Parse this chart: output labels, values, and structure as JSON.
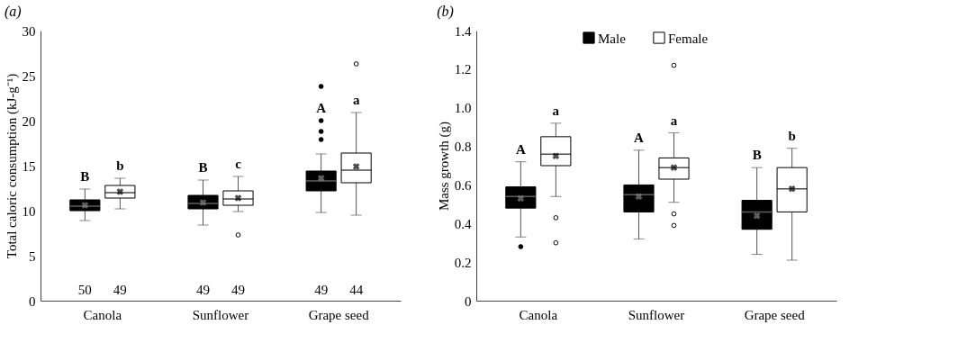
{
  "chart_data": [
    {
      "type": "box",
      "title": "(a)",
      "ylabel": "Total caloric consumption (kJ-g⁻¹)",
      "categories": [
        "Canola",
        "Sunflower",
        "Grape seed"
      ],
      "ylim": [
        0,
        30
      ],
      "yticks": [
        0,
        5,
        10,
        15,
        20,
        25,
        30
      ],
      "grid": false,
      "legend": false,
      "series": [
        {
          "color": "#000000",
          "boxes": [
            {
              "low": 8.9,
              "q1": 10.0,
              "median": 10.5,
              "q3": 11.2,
              "high": 12.4,
              "mean": 10.6
            },
            {
              "low": 8.4,
              "q1": 10.2,
              "median": 10.8,
              "q3": 11.7,
              "high": 13.4,
              "mean": 10.9
            },
            {
              "low": 9.8,
              "q1": 12.2,
              "median": 13.3,
              "q3": 14.4,
              "high": 16.3,
              "mean": 13.6,
              "outliers": [
                17.9,
                18.8,
                20.0,
                23.8
              ]
            }
          ]
        },
        {
          "color": "#ffffff",
          "boxes": [
            {
              "low": 10.2,
              "q1": 11.4,
              "median": 12.0,
              "q3": 12.8,
              "high": 13.6,
              "mean": 12.1
            },
            {
              "low": 9.9,
              "q1": 10.6,
              "median": 11.3,
              "q3": 12.2,
              "high": 13.8,
              "mean": 11.4,
              "outliers": [
                7.3
              ]
            },
            {
              "low": 9.5,
              "q1": 13.1,
              "median": 14.5,
              "q3": 16.4,
              "high": 20.9,
              "mean": 14.9,
              "outliers": [
                26.3
              ]
            }
          ]
        }
      ],
      "annotations": [
        "B",
        "b",
        "B",
        "c",
        "A",
        "a",
        "50",
        "49",
        "49",
        "49",
        "49",
        "44"
      ]
    },
    {
      "type": "box",
      "title": "(b)",
      "ylabel": "Mass growth (g)",
      "categories": [
        "Canola",
        "Sunflower",
        "Grape seed"
      ],
      "ylim": [
        0,
        1.4
      ],
      "yticks": [
        0,
        0.2,
        0.4,
        0.6,
        0.8,
        {
          "value": 1,
          "label": "1.0"
        },
        1.2,
        1.4
      ],
      "grid": false,
      "legend": "top",
      "series": [
        {
          "name": "Male",
          "color": "#000000",
          "boxes": [
            {
              "low": 0.33,
              "q1": 0.48,
              "median": 0.54,
              "q3": 0.59,
              "high": 0.72,
              "mean": 0.53,
              "outliers": [
                0.28
              ]
            },
            {
              "low": 0.32,
              "q1": 0.46,
              "median": 0.55,
              "q3": 0.6,
              "high": 0.78,
              "mean": 0.54
            },
            {
              "low": 0.24,
              "q1": 0.37,
              "median": 0.46,
              "q3": 0.52,
              "high": 0.69,
              "mean": 0.44
            }
          ]
        },
        {
          "name": "Female",
          "color": "#ffffff",
          "boxes": [
            {
              "low": 0.54,
              "q1": 0.7,
              "median": 0.76,
              "q3": 0.85,
              "high": 0.92,
              "mean": 0.75,
              "outliers": [
                0.43,
                0.3
              ]
            },
            {
              "low": 0.51,
              "q1": 0.63,
              "median": 0.69,
              "q3": 0.74,
              "high": 0.87,
              "mean": 0.69,
              "outliers": [
                1.22,
                0.45,
                0.39
              ]
            },
            {
              "low": 0.21,
              "q1": 0.46,
              "median": 0.58,
              "q3": 0.69,
              "high": 0.79,
              "mean": 0.58
            }
          ]
        }
      ],
      "annotations": [
        "A",
        "a",
        "A",
        "a",
        "B",
        "b"
      ]
    }
  ]
}
